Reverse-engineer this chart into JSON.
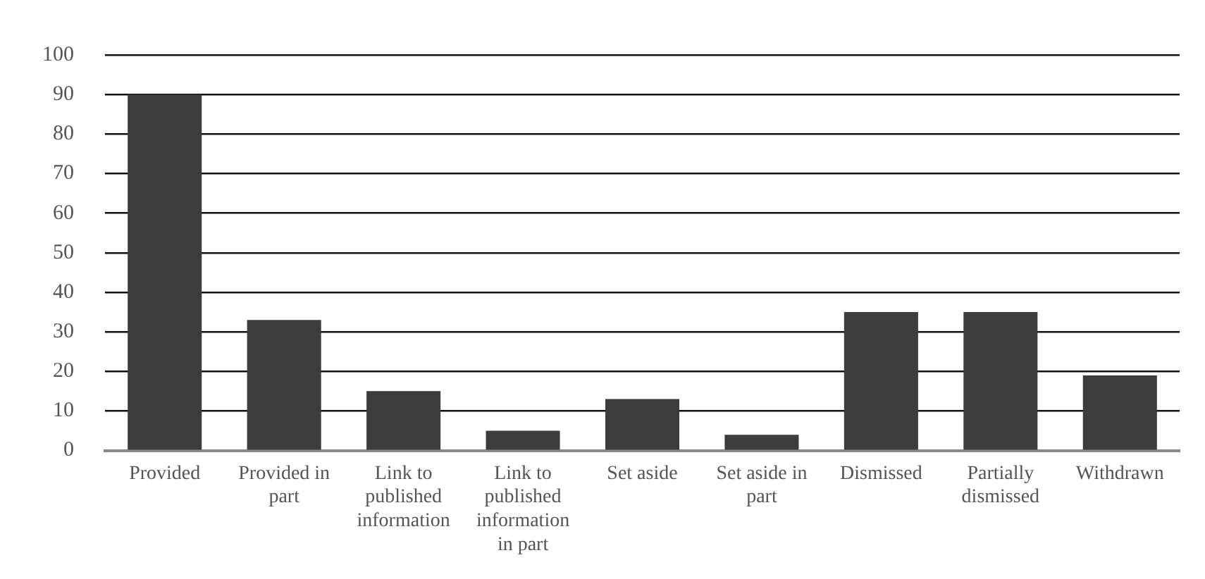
{
  "chart_data": {
    "type": "bar",
    "categories": [
      "Provided",
      "Provided in part",
      "Link to published information",
      "Link to published information in part",
      "Set aside",
      "Set aside in part",
      "Dismissed",
      "Partially dismissed",
      "Withdrawn"
    ],
    "values": [
      90,
      33,
      15,
      5,
      13,
      4,
      35,
      35,
      19
    ],
    "color": "#3c3c3b",
    "ylim": [
      0,
      100
    ],
    "yticks": [
      0,
      10,
      20,
      30,
      40,
      50,
      60,
      70,
      80,
      90,
      100
    ],
    "grid": "y",
    "legend": false
  }
}
